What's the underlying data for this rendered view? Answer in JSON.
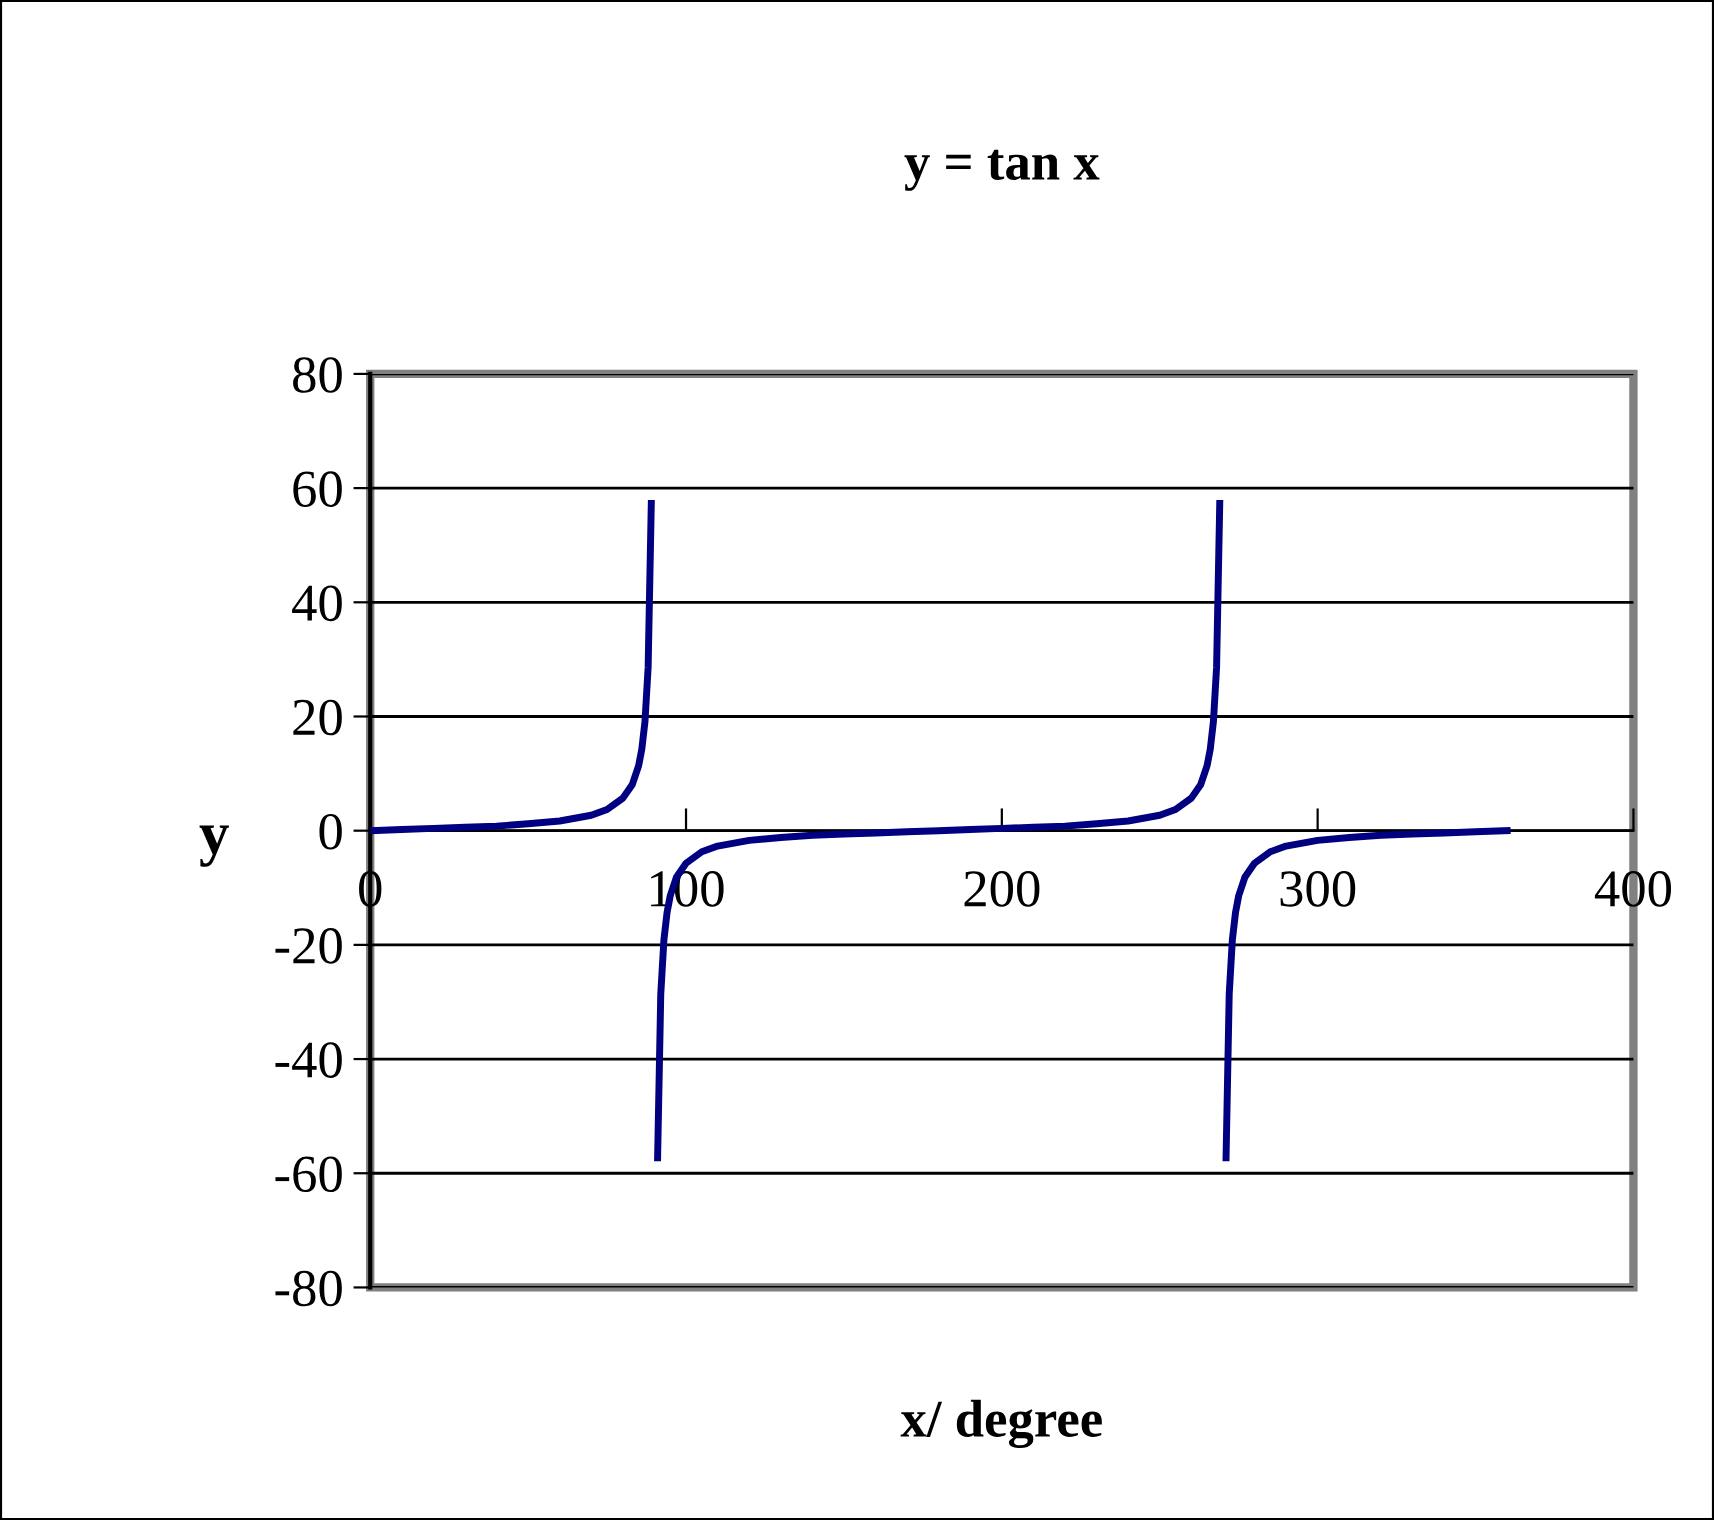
{
  "chart_data": {
    "type": "line",
    "title": "y = tan x",
    "xlabel": "x/ degree",
    "ylabel": "y",
    "x": [
      0,
      10,
      20,
      30,
      40,
      50,
      60,
      70,
      75,
      80,
      83,
      85,
      86,
      87,
      88,
      89,
      90,
      91,
      92,
      93,
      94,
      95,
      97,
      100,
      105,
      110,
      120,
      130,
      140,
      150,
      160,
      170,
      180,
      190,
      200,
      210,
      220,
      230,
      240,
      250,
      255,
      260,
      263,
      265,
      266,
      267,
      268,
      269,
      270,
      271,
      272,
      273,
      274,
      275,
      277,
      280,
      285,
      290,
      300,
      310,
      320,
      330,
      340,
      350,
      360
    ],
    "series": [
      {
        "color": "#000080",
        "values": [
          0,
          0.2,
          0.4,
          0.6,
          0.8,
          1.2,
          1.7,
          2.7,
          3.7,
          5.7,
          8.1,
          11.4,
          14.3,
          19.1,
          28.6,
          57.3,
          null,
          -57.3,
          -28.6,
          -19.1,
          -14.3,
          -11.4,
          -8.1,
          -5.7,
          -3.7,
          -2.7,
          -1.7,
          -1.2,
          -0.8,
          -0.6,
          -0.4,
          -0.2,
          0,
          0.2,
          0.4,
          0.6,
          0.8,
          1.2,
          1.7,
          2.7,
          3.7,
          5.7,
          8.1,
          11.4,
          14.3,
          19.1,
          28.6,
          57.3,
          null,
          -57.3,
          -28.6,
          -19.1,
          -14.3,
          -11.4,
          -8.1,
          -5.7,
          -3.7,
          -2.7,
          -1.7,
          -1.2,
          -0.8,
          -0.6,
          -0.4,
          -0.2,
          0
        ]
      }
    ],
    "xlim": [
      0,
      400
    ],
    "xticks": [
      0,
      100,
      200,
      300,
      400
    ],
    "ylim": [
      -80,
      80
    ],
    "yticks": [
      -80,
      -60,
      -40,
      -20,
      0,
      20,
      40,
      60,
      80
    ],
    "grid": "y",
    "marker": "none",
    "line_style": "solid",
    "legend": false
  }
}
